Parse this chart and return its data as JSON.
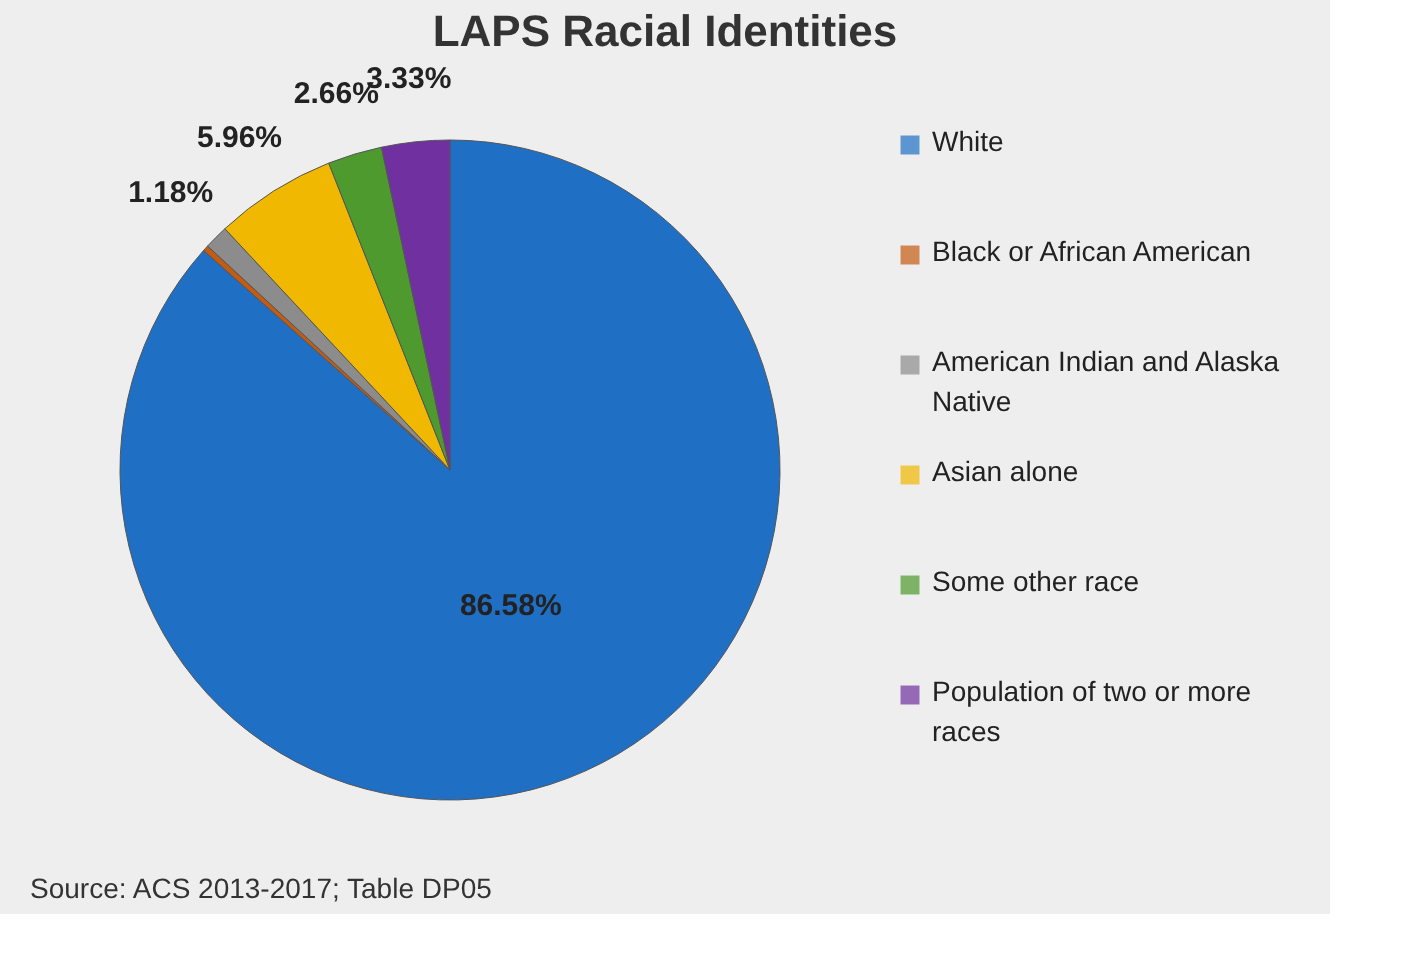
{
  "chart_data": {
    "type": "pie",
    "title": "LAPS Racial Identities",
    "categories": [
      "White",
      "Black or African American",
      "American Indian and Alaska Native",
      "Asian alone",
      "Some other race",
      "Population of two or more races"
    ],
    "values": [
      86.58,
      0.29,
      1.18,
      5.96,
      2.66,
      3.33
    ],
    "colors": [
      "#1f6fc5",
      "#c55a11",
      "#8c8c8c",
      "#f0b800",
      "#4e9a2e",
      "#7030a0"
    ],
    "value_labels": [
      "86.58%",
      null,
      "1.18%",
      "5.96%",
      "2.66%",
      "3.33%"
    ],
    "legend": "right",
    "annotations": [
      "Source: ACS 2013-2017; Table DP05"
    ]
  }
}
